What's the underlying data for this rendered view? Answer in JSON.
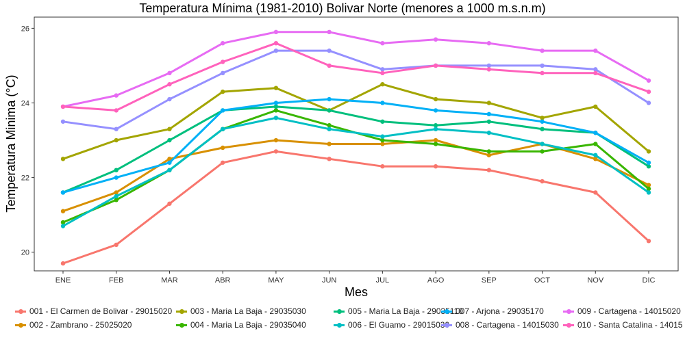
{
  "chart_data": {
    "type": "line",
    "title": "Temperatura Mínima (1981-2010) Bolivar Norte (menores a 1000 m.s.n.m)",
    "xlabel": "Mes",
    "ylabel": "Temperatura Minima (°C)",
    "categories": [
      "ENE",
      "FEB",
      "MAR",
      "ABR",
      "MAY",
      "JUN",
      "JUL",
      "AGO",
      "SEP",
      "OCT",
      "NOV",
      "DIC"
    ],
    "ylim": [
      19.5,
      26.3
    ],
    "yticks": [
      20,
      22,
      24,
      26
    ],
    "grid": false,
    "legend_position": "bottom",
    "series": [
      {
        "name": "001 - El Carmen de Bolivar - 29015020",
        "color": "#F8766D",
        "values": [
          19.7,
          20.2,
          21.3,
          22.4,
          22.7,
          22.5,
          22.3,
          22.3,
          22.2,
          21.9,
          21.6,
          20.3
        ]
      },
      {
        "name": "002 - Zambrano - 25025020",
        "color": "#D89000",
        "values": [
          21.1,
          21.6,
          22.5,
          22.8,
          23.0,
          22.9,
          22.9,
          23.0,
          22.6,
          22.9,
          22.5,
          21.8
        ]
      },
      {
        "name": "003 - Maria La Baja - 29035030",
        "color": "#A3A500",
        "values": [
          22.5,
          23.0,
          23.3,
          24.3,
          24.4,
          23.8,
          24.5,
          24.1,
          24.0,
          23.6,
          23.9,
          22.7
        ]
      },
      {
        "name": "004 - Maria La Baja - 29035040",
        "color": "#39B600",
        "values": [
          20.8,
          21.4,
          22.2,
          23.3,
          23.8,
          23.4,
          23.0,
          22.9,
          22.7,
          22.7,
          22.9,
          21.7
        ]
      },
      {
        "name": "005 - Maria La Baja - 29035110",
        "color": "#00BF7D",
        "values": [
          21.6,
          22.2,
          23.0,
          23.8,
          23.9,
          23.8,
          23.5,
          23.4,
          23.5,
          23.3,
          23.2,
          22.3
        ]
      },
      {
        "name": "006 - El Guamo - 29015030",
        "color": "#00BFC4",
        "values": [
          20.7,
          21.5,
          22.2,
          23.3,
          23.6,
          23.3,
          23.1,
          23.3,
          23.2,
          22.9,
          22.6,
          21.6
        ]
      },
      {
        "name": "007 - Arjona - 29035170",
        "color": "#00B0F6",
        "values": [
          21.6,
          22.0,
          22.4,
          23.8,
          24.0,
          24.1,
          24.0,
          23.8,
          23.7,
          23.5,
          23.2,
          22.4
        ]
      },
      {
        "name": "008 - Cartagena - 14015030",
        "color": "#9590FF",
        "values": [
          23.5,
          23.3,
          24.1,
          24.8,
          25.4,
          25.4,
          24.9,
          25.0,
          25.0,
          25.0,
          24.9,
          24.0
        ]
      },
      {
        "name": "009 - Cartagena - 14015020",
        "color": "#E76BF3",
        "values": [
          23.9,
          24.2,
          24.8,
          25.6,
          25.9,
          25.9,
          25.6,
          25.7,
          25.6,
          25.4,
          25.4,
          24.6
        ]
      },
      {
        "name": "010 - Santa Catalina - 14015",
        "color": "#FF62BC",
        "values": [
          23.9,
          23.8,
          24.5,
          25.1,
          25.6,
          25.0,
          24.8,
          25.0,
          24.9,
          24.8,
          24.8,
          24.3
        ]
      }
    ]
  }
}
